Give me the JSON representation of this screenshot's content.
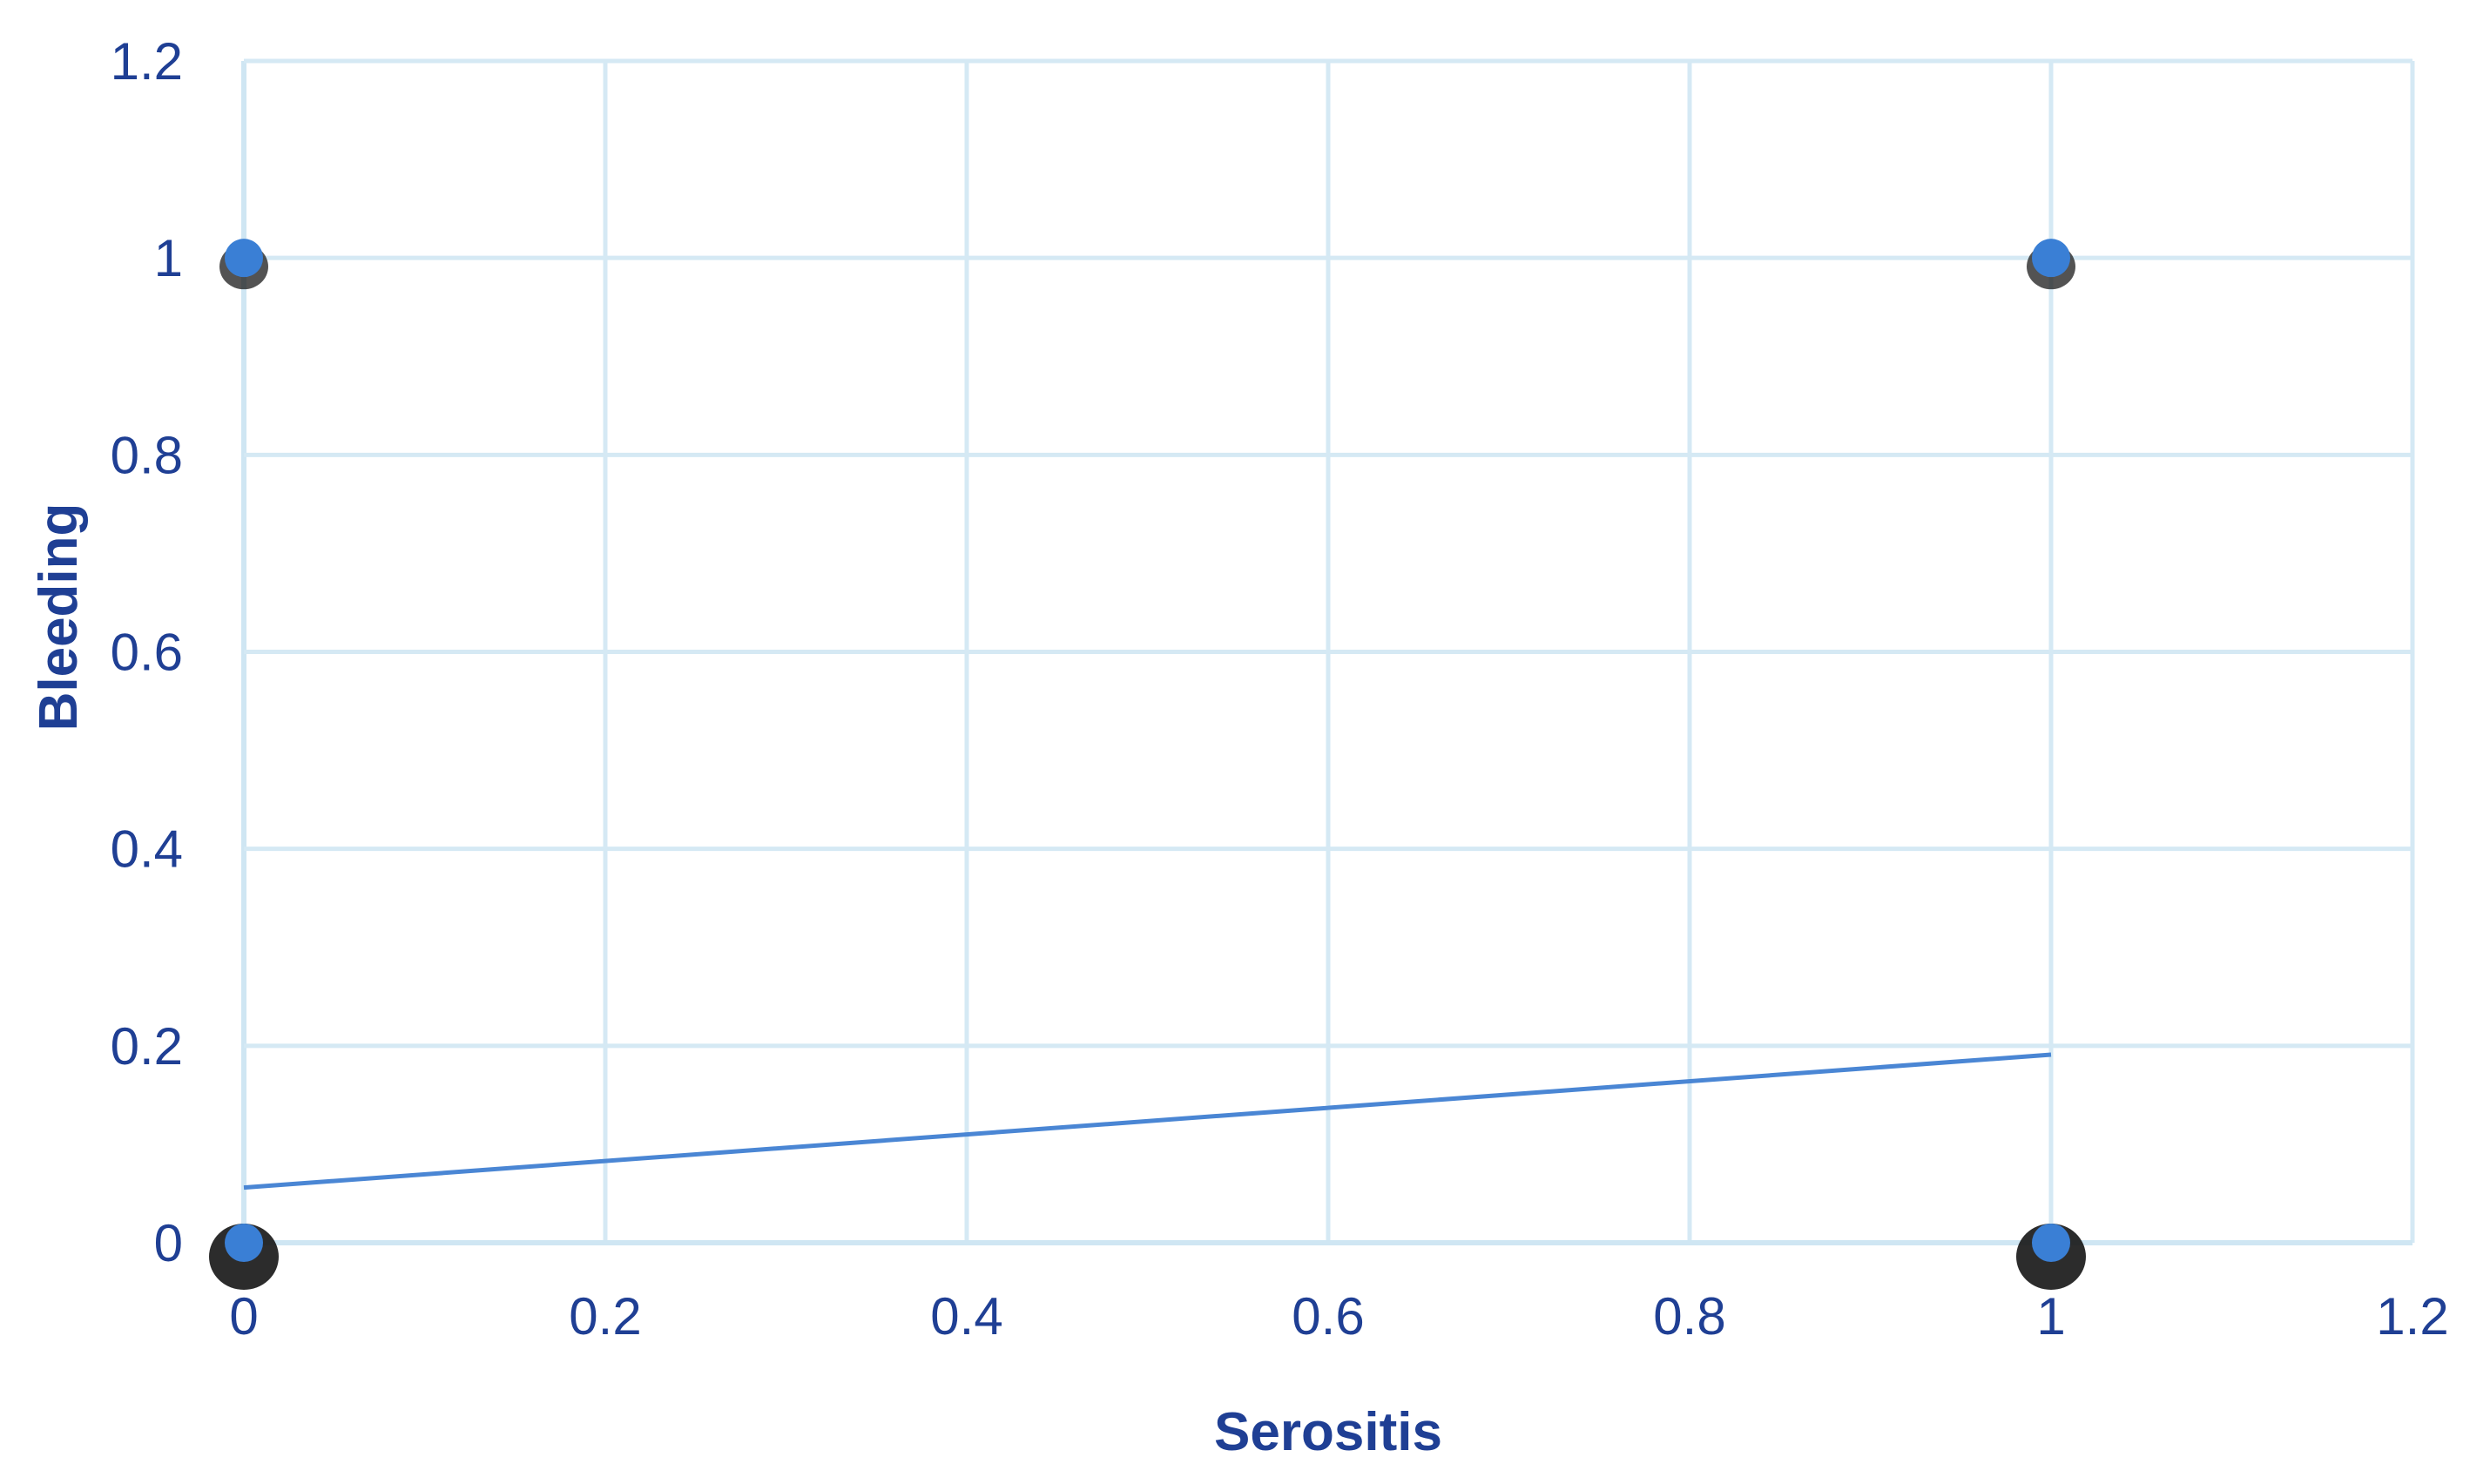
{
  "chart_data": {
    "type": "scatter",
    "title": "",
    "xlabel": "Serositis",
    "ylabel": "Bleeding",
    "xlim": [
      0,
      1.2
    ],
    "ylim": [
      0,
      1.2
    ],
    "x_ticks": [
      "0",
      "0.2",
      "0.4",
      "0.6",
      "0.8",
      "1",
      "1.2"
    ],
    "y_ticks": [
      "0",
      "0.2",
      "0.4",
      "0.6",
      "0.8",
      "1",
      "1.2"
    ],
    "grid": true,
    "legend": "none",
    "series": [
      {
        "points": [
          {
            "x": 0,
            "y": 1
          },
          {
            "x": 1,
            "y": 1
          },
          {
            "x": 0,
            "y": 0
          },
          {
            "x": 1,
            "y": 0
          }
        ],
        "color": "#3a7fd5"
      }
    ],
    "trendline": {
      "type": "linear",
      "points": [
        {
          "x": 0,
          "y": 0.056
        },
        {
          "x": 1,
          "y": 0.191
        }
      ],
      "color": "#4a86d4"
    },
    "colors": {
      "axis_text": "#1f3f94",
      "grid": "#d5e9f4",
      "marker": "#3a7fd5",
      "marker_shadow": "#1a1a1a"
    }
  }
}
